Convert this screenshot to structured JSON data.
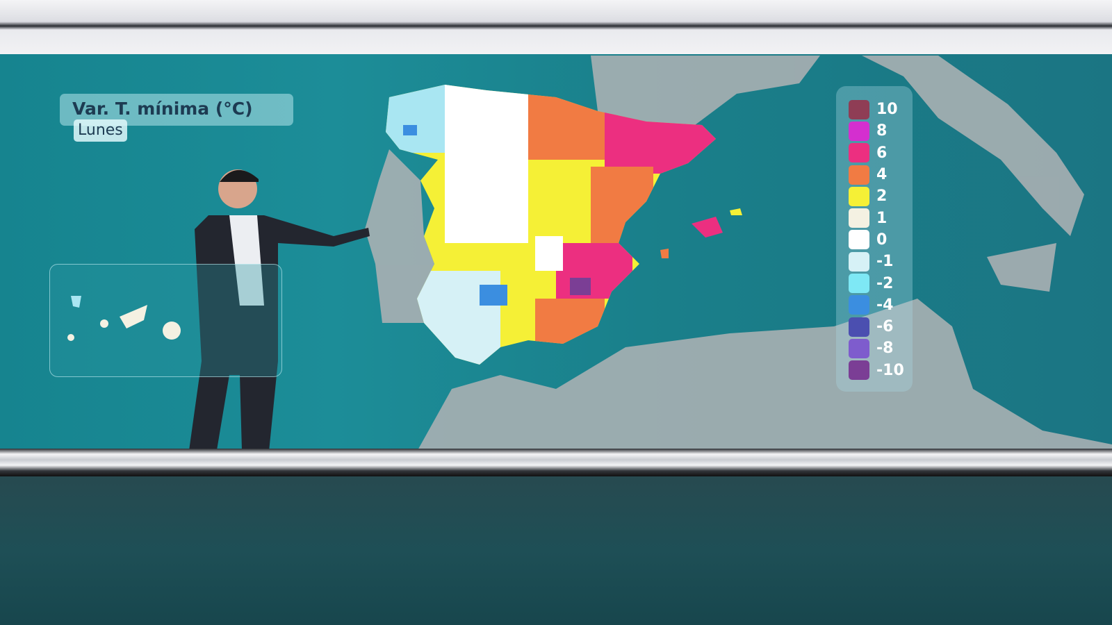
{
  "map": {
    "title": "Var. T. mínima (°C)",
    "day": "Lunes",
    "legend": [
      {
        "value": "10",
        "color": "#8f3d55"
      },
      {
        "value": "8",
        "color": "#d42fcf"
      },
      {
        "value": "6",
        "color": "#ec2f80"
      },
      {
        "value": "4",
        "color": "#f17b43"
      },
      {
        "value": "2",
        "color": "#f5f036"
      },
      {
        "value": "1",
        "color": "#f4f1e2"
      },
      {
        "value": "0",
        "color": "#ffffff"
      },
      {
        "value": "-1",
        "color": "#d6f1f6"
      },
      {
        "value": "-2",
        "color": "#7ee8f5"
      },
      {
        "value": "-4",
        "color": "#3b8ee0"
      },
      {
        "value": "-6",
        "color": "#4b4fb0"
      },
      {
        "value": "-8",
        "color": "#7e5ccd"
      },
      {
        "value": "-10",
        "color": "#7b3e95"
      }
    ]
  }
}
